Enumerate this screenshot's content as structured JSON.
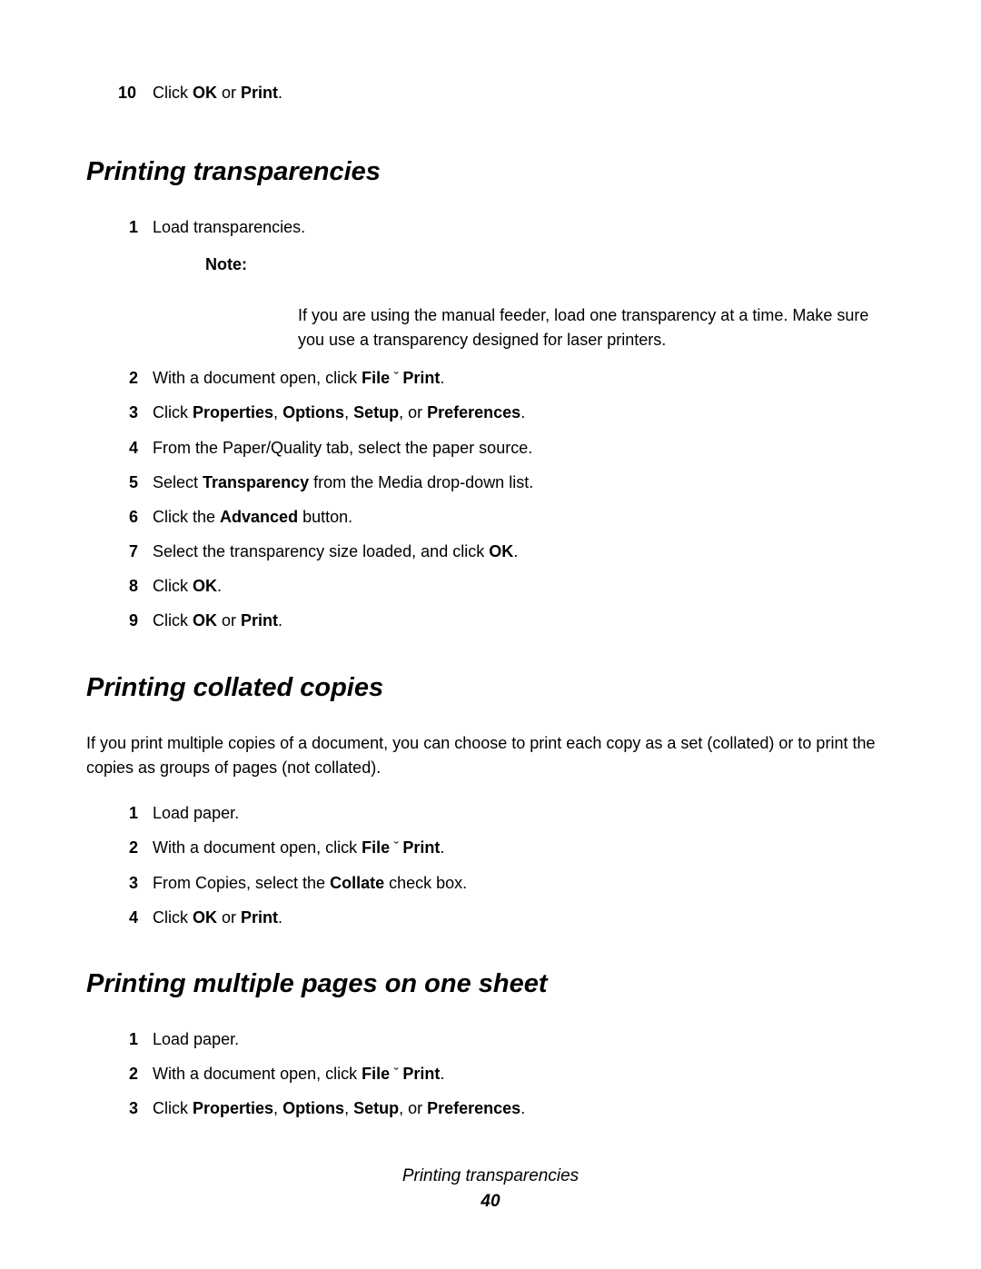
{
  "topStep": {
    "num": "10",
    "prefix": "Click ",
    "bold1": "OK",
    "mid": " or ",
    "bold2": "Print",
    "suffix": "."
  },
  "section1": {
    "heading": "Printing transparencies",
    "steps": [
      {
        "num": "1",
        "text": "Load transparencies.",
        "noteLabel": "Note:",
        "noteBody": "If you are using the manual feeder, load one transparency at a time. Make sure you use a transparency designed for laser printers."
      }
    ],
    "step2": {
      "num": "2",
      "prefix": "With a document open, click ",
      "bold1": "File",
      "arrow": " ˇ  ",
      "bold2": "Print",
      "suffix": "."
    },
    "step3": {
      "num": "3",
      "prefix": "Click ",
      "bold1": "Properties",
      "c1": ", ",
      "bold2": "Options",
      "c2": ", ",
      "bold3": "Setup",
      "c3": ", or ",
      "bold4": "Preferences",
      "suffix": "."
    },
    "step4": {
      "num": "4",
      "text": "From the Paper/Quality tab, select the paper source."
    },
    "step5": {
      "num": "5",
      "prefix": "Select ",
      "bold1": "Transparency",
      "suffix": " from the Media drop-down list."
    },
    "step6": {
      "num": "6",
      "prefix": "Click the ",
      "bold1": "Advanced",
      "suffix": " button."
    },
    "step7": {
      "num": "7",
      "prefix": "Select the transparency size loaded, and click ",
      "bold1": "OK",
      "suffix": "."
    },
    "step8": {
      "num": "8",
      "prefix": "Click ",
      "bold1": "OK",
      "suffix": "."
    },
    "step9": {
      "num": "9",
      "prefix": "Click ",
      "bold1": "OK",
      "mid": " or ",
      "bold2": "Print",
      "suffix": "."
    }
  },
  "section2": {
    "heading": "Printing collated copies",
    "intro": "If you print multiple copies of a document, you can choose to print each copy as a set (collated) or to print the copies as groups of pages (not collated).",
    "step1": {
      "num": "1",
      "text": "Load paper."
    },
    "step2": {
      "num": "2",
      "prefix": "With a document open, click ",
      "bold1": "File",
      "arrow": " ˇ  ",
      "bold2": "Print",
      "suffix": "."
    },
    "step3": {
      "num": "3",
      "prefix": "From Copies, select the ",
      "bold1": "Collate",
      "suffix": " check box."
    },
    "step4": {
      "num": "4",
      "prefix": "Click ",
      "bold1": "OK",
      "mid": " or ",
      "bold2": "Print",
      "suffix": "."
    }
  },
  "section3": {
    "heading": "Printing multiple pages on one sheet",
    "step1": {
      "num": "1",
      "text": "Load paper."
    },
    "step2": {
      "num": "2",
      "prefix": "With a document open, click ",
      "bold1": "File",
      "arrow": " ˇ  ",
      "bold2": "Print",
      "suffix": "."
    },
    "step3": {
      "num": "3",
      "prefix": "Click ",
      "bold1": "Properties",
      "c1": ", ",
      "bold2": "Options",
      "c2": ", ",
      "bold3": "Setup",
      "c3": ", or ",
      "bold4": "Preferences",
      "suffix": "."
    }
  },
  "footer": {
    "title": "Printing transparencies",
    "page": "40"
  }
}
